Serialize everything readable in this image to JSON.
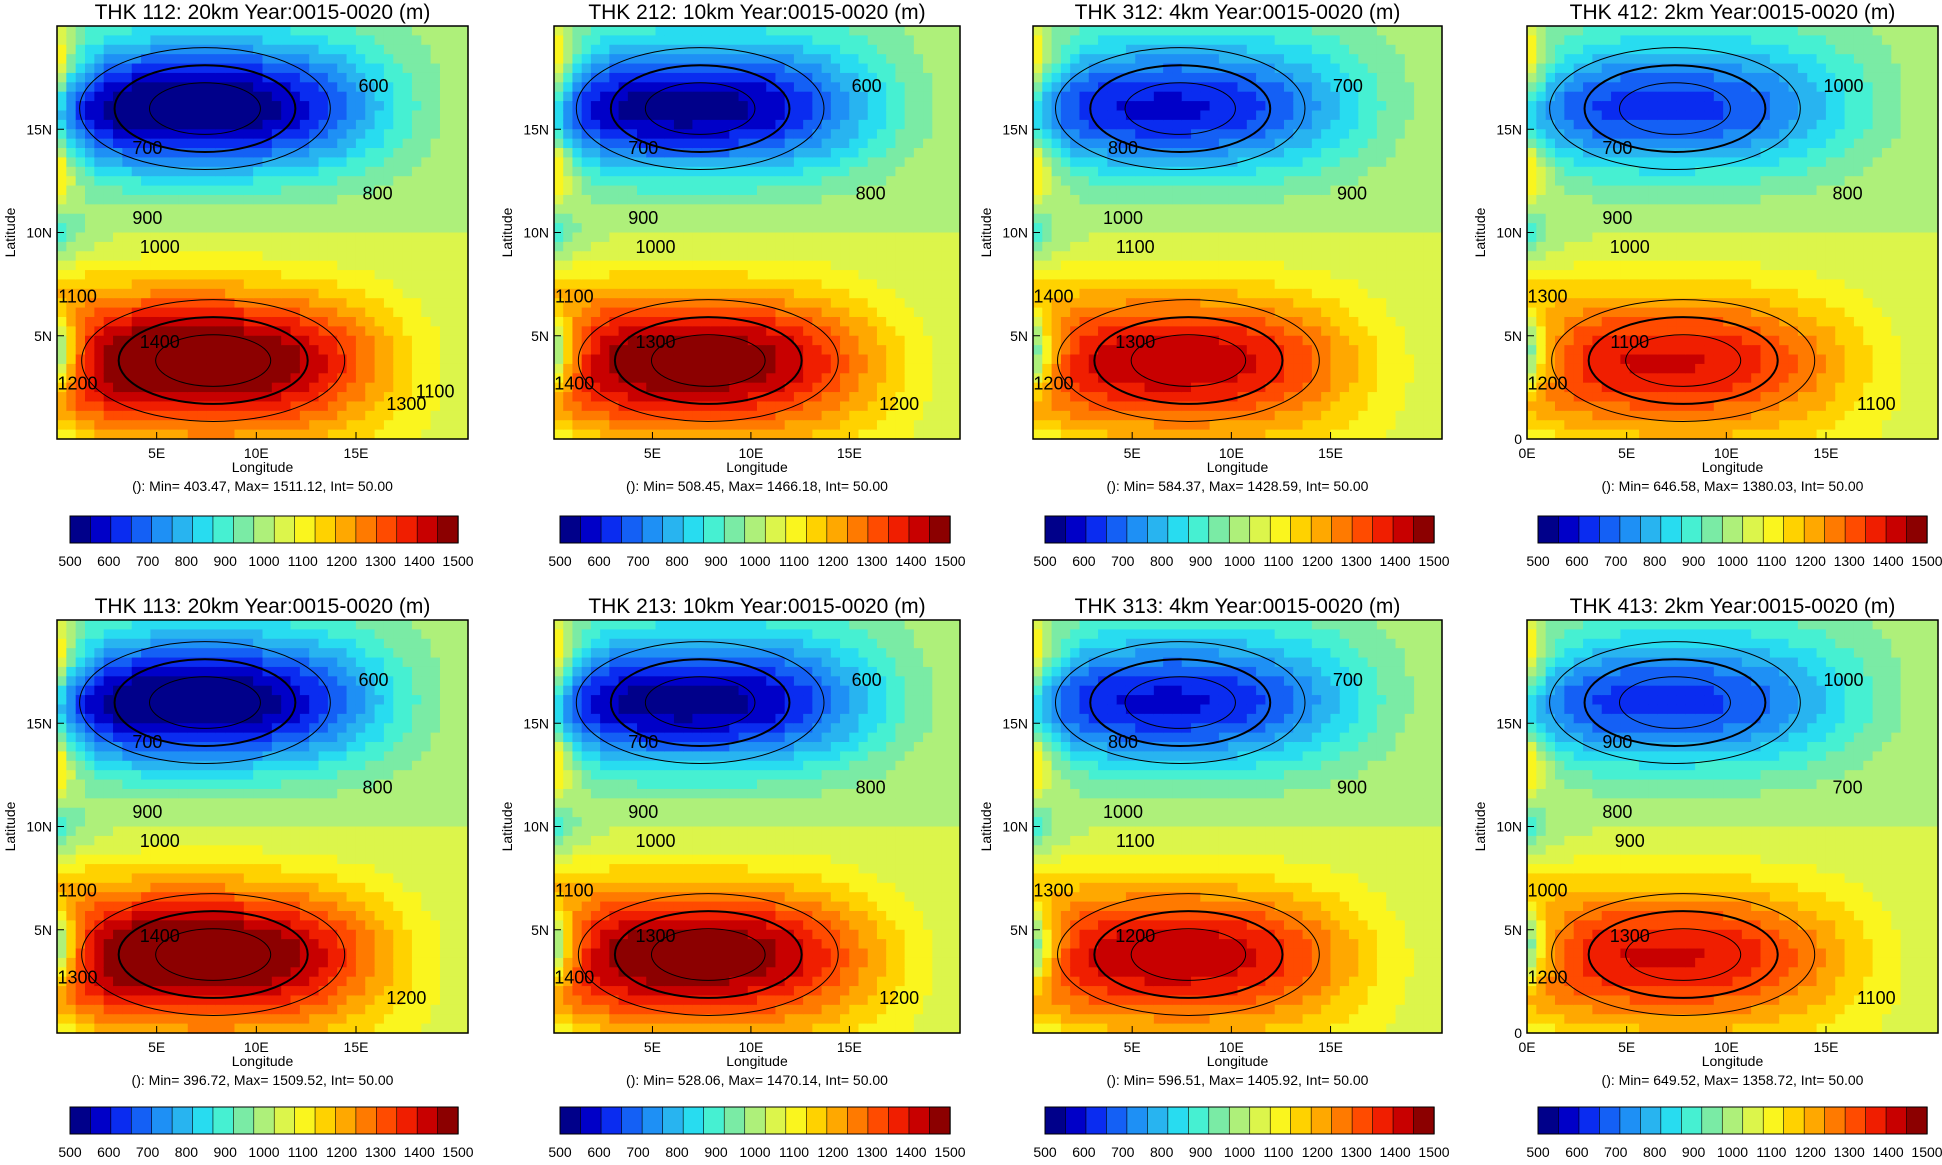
{
  "figure": {
    "colorbar_ticks": [
      "500",
      "600",
      "700",
      "800",
      "900",
      "1000",
      "1100",
      "1200",
      "1300",
      "1400",
      "1500"
    ],
    "colors": [
      "#00008a",
      "#0000c8",
      "#0a2cf0",
      "#1460f5",
      "#1e90f5",
      "#28b4f0",
      "#28dcf0",
      "#46f0d2",
      "#7aeba5",
      "#aef07a",
      "#dcf54b",
      "#faf51e",
      "#ffd200",
      "#ffa800",
      "#ff7a00",
      "#ff4b00",
      "#f01e00",
      "#c80000",
      "#8c0000"
    ]
  },
  "chart_data": [
    {
      "type": "heatmap",
      "title": "THK 112: 20km Year:0015-0020 (m)",
      "xlabel": "Longitude",
      "ylabel": "Latitude",
      "xticks": [
        "5E",
        "10E",
        "15E"
      ],
      "yticks": [
        "5N",
        "10N",
        "15N"
      ],
      "stats": "(): Min= 403.47, Max= 1511.12, Int= 50.00",
      "min": 403.47,
      "max": 1511.12,
      "interval": 50.0,
      "xlim": [
        0,
        20
      ],
      "ylim": [
        0,
        20
      ],
      "contour_labels": [
        "600",
        "700",
        "800",
        "900",
        "1000",
        "1100",
        "1400",
        "1200",
        "1300",
        "1100"
      ],
      "blob_scale": 1.0
    },
    {
      "type": "heatmap",
      "title": "THK 212: 10km Year:0015-0020 (m)",
      "xlabel": "Longitude",
      "ylabel": "Latitude",
      "xticks": [
        "5E",
        "10E",
        "15E"
      ],
      "yticks": [
        "5N",
        "10N",
        "15N"
      ],
      "stats": "(): Min= 508.45, Max= 1466.18, Int= 50.00",
      "min": 508.45,
      "max": 1466.18,
      "interval": 50.0,
      "xlim": [
        0,
        20
      ],
      "ylim": [
        0,
        20
      ],
      "contour_labels": [
        "600",
        "700",
        "800",
        "900",
        "1000",
        "1100",
        "1300",
        "1400",
        "1200"
      ],
      "blob_scale": 0.92
    },
    {
      "type": "heatmap",
      "title": "THK 312:  4km Year:0015-0020 (m)",
      "xlabel": "Longitude",
      "ylabel": "Latitude",
      "xticks": [
        "5E",
        "10E",
        "15E"
      ],
      "yticks": [
        "5N",
        "10N",
        "15N"
      ],
      "stats": "(): Min= 584.37, Max= 1428.59, Int= 50.00",
      "min": 584.37,
      "max": 1428.59,
      "interval": 50.0,
      "xlim": [
        0,
        20
      ],
      "ylim": [
        0,
        20
      ],
      "contour_labels": [
        "700",
        "800",
        "900",
        "1000",
        "1100",
        "1400",
        "1300",
        "1200"
      ],
      "blob_scale": 0.78
    },
    {
      "type": "heatmap",
      "title": "THK 412: 2km Year:0015-0020 (m)",
      "xlabel": "Longitude",
      "ylabel": "Latitude",
      "xticks": [
        "0E",
        "5E",
        "10E",
        "15E"
      ],
      "yticks": [
        "0",
        "5N",
        "10N",
        "15N"
      ],
      "stats": "(): Min= 646.58, Max= 1380.03, Int= 50.00",
      "min": 646.58,
      "max": 1380.03,
      "interval": 50.0,
      "xlim": [
        0,
        20
      ],
      "ylim": [
        0,
        20
      ],
      "contour_labels": [
        "1000",
        "700",
        "800",
        "900",
        "1000",
        "1300",
        "1100",
        "1200",
        "1100"
      ],
      "blob_scale": 0.7
    },
    {
      "type": "heatmap",
      "title": "THK 113: 20km Year:0015-0020 (m)",
      "xlabel": "Longitude",
      "ylabel": "Latitude",
      "xticks": [
        "5E",
        "10E",
        "15E"
      ],
      "yticks": [
        "5N",
        "10N",
        "15N"
      ],
      "stats": "(): Min= 396.72, Max= 1509.52, Int= 50.00",
      "min": 396.72,
      "max": 1509.52,
      "interval": 50.0,
      "xlim": [
        0,
        20
      ],
      "ylim": [
        0,
        20
      ],
      "contour_labels": [
        "600",
        "700",
        "800",
        "900",
        "1000",
        "1100",
        "1400",
        "1300",
        "1200"
      ],
      "blob_scale": 1.0
    },
    {
      "type": "heatmap",
      "title": "THK 213: 10km Year:0015-0020 (m)",
      "xlabel": "Longitude",
      "ylabel": "Latitude",
      "xticks": [
        "5E",
        "10E",
        "15E"
      ],
      "yticks": [
        "5N",
        "10N",
        "15N"
      ],
      "stats": "(): Min= 528.06, Max= 1470.14, Int= 50.00",
      "min": 528.06,
      "max": 1470.14,
      "interval": 50.0,
      "xlim": [
        0,
        20
      ],
      "ylim": [
        0,
        20
      ],
      "contour_labels": [
        "600",
        "700",
        "800",
        "900",
        "1000",
        "1100",
        "1300",
        "1400",
        "1200"
      ],
      "blob_scale": 0.92
    },
    {
      "type": "heatmap",
      "title": "THK 313:  4km Year:0015-0020 (m)",
      "xlabel": "Longitude",
      "ylabel": "Latitude",
      "xticks": [
        "5E",
        "10E",
        "15E"
      ],
      "yticks": [
        "5N",
        "10N",
        "15N"
      ],
      "stats": "(): Min= 596.51, Max= 1405.92, Int= 50.00",
      "min": 596.51,
      "max": 1405.92,
      "interval": 50.0,
      "xlim": [
        0,
        20
      ],
      "ylim": [
        0,
        20
      ],
      "contour_labels": [
        "700",
        "800",
        "900",
        "1000",
        "1100",
        "1300",
        "1200"
      ],
      "blob_scale": 0.78
    },
    {
      "type": "heatmap",
      "title": "THK 413: 2km Year:0015-0020 (m)",
      "xlabel": "Longitude",
      "ylabel": "Latitude",
      "xticks": [
        "0E",
        "5E",
        "10E",
        "15E"
      ],
      "yticks": [
        "0",
        "5N",
        "10N",
        "15N"
      ],
      "stats": "(): Min= 649.52, Max= 1358.72, Int= 50.00",
      "min": 649.52,
      "max": 1358.72,
      "interval": 50.0,
      "xlim": [
        0,
        20
      ],
      "ylim": [
        0,
        20
      ],
      "contour_labels": [
        "1000",
        "900",
        "700",
        "800",
        "900",
        "1000",
        "1300",
        "1200",
        "1100"
      ],
      "blob_scale": 0.7
    }
  ]
}
